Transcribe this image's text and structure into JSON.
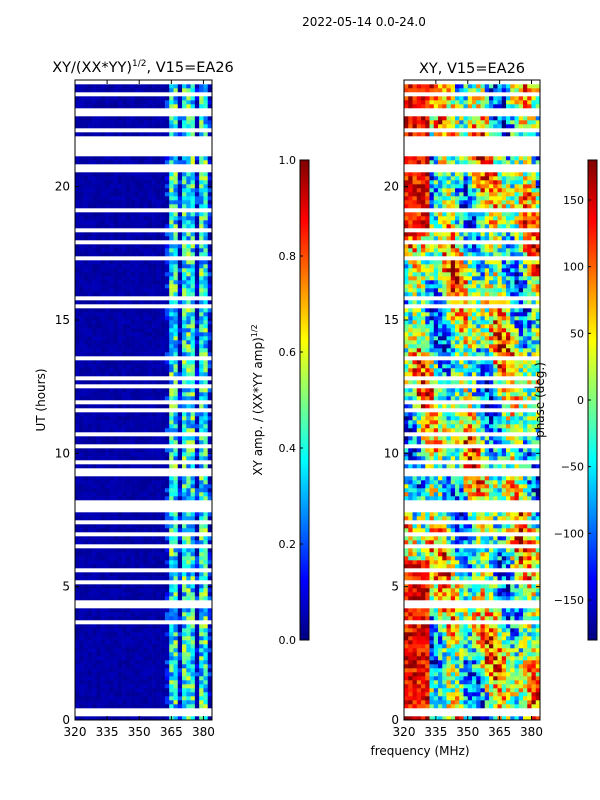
{
  "figure_title": "2022-05-14 0.0-24.0",
  "colors": {
    "jet": [
      "#00007f",
      "#0000ff",
      "#007fff",
      "#00ffff",
      "#7fff7f",
      "#ffff00",
      "#ff7f00",
      "#ff0000",
      "#7f0000"
    ],
    "flagged_rows": "#ffffff",
    "frame": "#000000"
  },
  "chart_data": [
    {
      "type": "heatmap",
      "title_prefix": "XY/(XX*YY)",
      "title_exponent": "1/2",
      "title_suffix": ", V15=EA26",
      "xlabel": "",
      "ylabel": "UT (hours)",
      "xlim": [
        320,
        384
      ],
      "ylim": [
        0,
        24
      ],
      "xticks": [
        "320",
        "335",
        "350",
        "365",
        "380"
      ],
      "xtick_values": [
        320,
        335,
        350,
        365,
        380
      ],
      "yticks": [
        "0",
        "5",
        "10",
        "15",
        "20"
      ],
      "ytick_values": [
        0,
        5,
        10,
        15,
        20
      ],
      "value": "XY amplitude normalized by sqrt(XX*YY amp)",
      "dominant_value_below_364MHz": 0.0,
      "bright_channels_MHz": [
        364,
        366,
        369,
        372,
        374,
        377,
        380
      ],
      "bright_channel_value_range": [
        0.2,
        0.6
      ],
      "colorbar": {
        "label_prefix": "XY amp. / (XX*YY amp)",
        "label_exponent": "1/2",
        "vmin": 0.0,
        "vmax": 1.0,
        "ticks": [
          "0.0",
          "0.2",
          "0.4",
          "0.6",
          "0.8",
          "1.0"
        ],
        "tick_values": [
          0.0,
          0.2,
          0.4,
          0.6,
          0.8,
          1.0
        ]
      }
    },
    {
      "type": "heatmap",
      "title": "XY, V15=EA26",
      "xlabel": "frequency (MHz)",
      "ylabel": "",
      "xlim": [
        320,
        384
      ],
      "ylim": [
        0,
        24
      ],
      "xticks": [
        "320",
        "335",
        "350",
        "365",
        "380"
      ],
      "xtick_values": [
        320,
        335,
        350,
        365,
        380
      ],
      "yticks": [
        "0",
        "5",
        "10",
        "15",
        "20"
      ],
      "ytick_values": [
        0,
        5,
        10,
        15,
        20
      ],
      "value": "XY phase (deg)",
      "colorbar": {
        "label": "phase (deg.)",
        "vmin": -180,
        "vmax": 180,
        "ticks": [
          "−150",
          "−100",
          "−50",
          "0",
          "50",
          "100",
          "150"
        ],
        "tick_values": [
          -150,
          -100,
          -50,
          0,
          50,
          100,
          150
        ]
      }
    }
  ]
}
